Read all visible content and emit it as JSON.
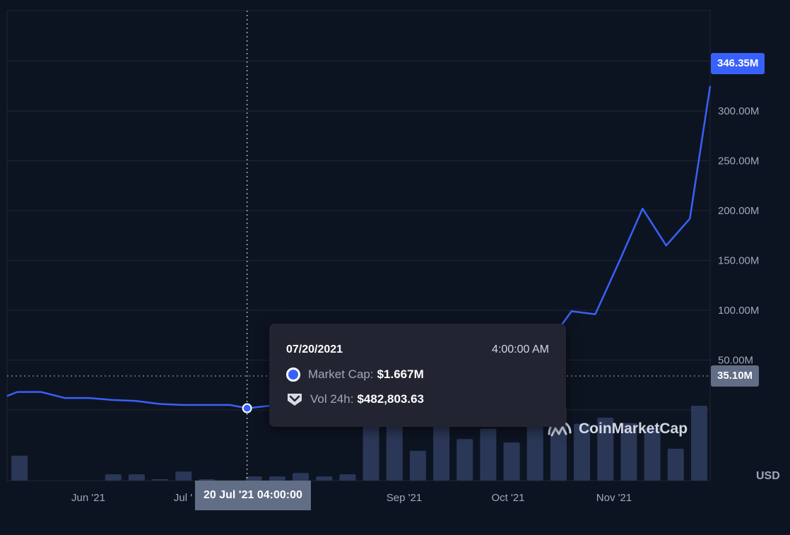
{
  "chart_data": {
    "type": "line",
    "series": [
      {
        "values": [
          {
            "x": "2021-05-10",
            "y": 14.0
          },
          {
            "x": "2021-05-13",
            "y": 18.0
          },
          {
            "x": "2021-05-20",
            "y": 18.0
          },
          {
            "x": "2021-05-27",
            "y": 12.0
          },
          {
            "x": "2021-06-03",
            "y": 12.0
          },
          {
            "x": "2021-06-10",
            "y": 10.0
          },
          {
            "x": "2021-06-17",
            "y": 9.0
          },
          {
            "x": "2021-06-24",
            "y": 6.0
          },
          {
            "x": "2021-07-01",
            "y": 5.0
          },
          {
            "x": "2021-07-08",
            "y": 5.0
          },
          {
            "x": "2021-07-15",
            "y": 5.0
          },
          {
            "x": "2021-07-20",
            "y": 1.667
          },
          {
            "x": "2021-07-29",
            "y": 5.0
          }
        ]
      },
      {
        "values": [
          {
            "x": "2021-10-21",
            "y": 85.0
          },
          {
            "x": "2021-10-24",
            "y": 99.0
          },
          {
            "x": "2021-10-31",
            "y": 96.0
          },
          {
            "x": "2021-11-07",
            "y": 148.0
          },
          {
            "x": "2021-11-14",
            "y": 202.0
          },
          {
            "x": "2021-11-21",
            "y": 165.0
          },
          {
            "x": "2021-11-28",
            "y": 192.0
          },
          {
            "x": "2021-12-04",
            "y": 325.0
          }
        ]
      }
    ],
    "volume_bars": [
      3.6,
      0.0,
      0.0,
      0.0,
      0.9,
      0.9,
      0.2,
      1.3,
      0.2,
      0.0,
      0.6,
      0.6,
      1.1,
      0.6,
      0.9,
      11.7,
      11.7,
      4.3,
      8.0,
      6.0,
      7.5,
      5.5,
      10.9,
      10.4,
      8.2,
      9.1,
      8.3,
      7.6,
      4.6,
      10.8
    ],
    "xticks": [
      "Jun '21",
      "Jul '",
      "Sep '21",
      "Oct '21",
      "Nov '21"
    ],
    "yticks": [
      "50.00M",
      "100.00M",
      "150.00M",
      "200.00M",
      "250.00M",
      "300.00M"
    ],
    "ylim": [
      0,
      355
    ],
    "currency": "USD",
    "grid": true,
    "line_color": "#3861fb",
    "volume_color": "#2b3757",
    "current_value_label": "346.35M",
    "crosshair_value_label": "35.10M",
    "crosshair_date_label": "20 Jul '21 04:00:00"
  },
  "tooltip": {
    "date": "07/20/2021",
    "time": "4:00:00 AM",
    "market_cap_label": "Market Cap:",
    "market_cap_value": "$1.667M",
    "volume_label": "Vol 24h:",
    "volume_value": "$482,803.63"
  },
  "watermark": {
    "brand": "CoinMarketCap"
  }
}
